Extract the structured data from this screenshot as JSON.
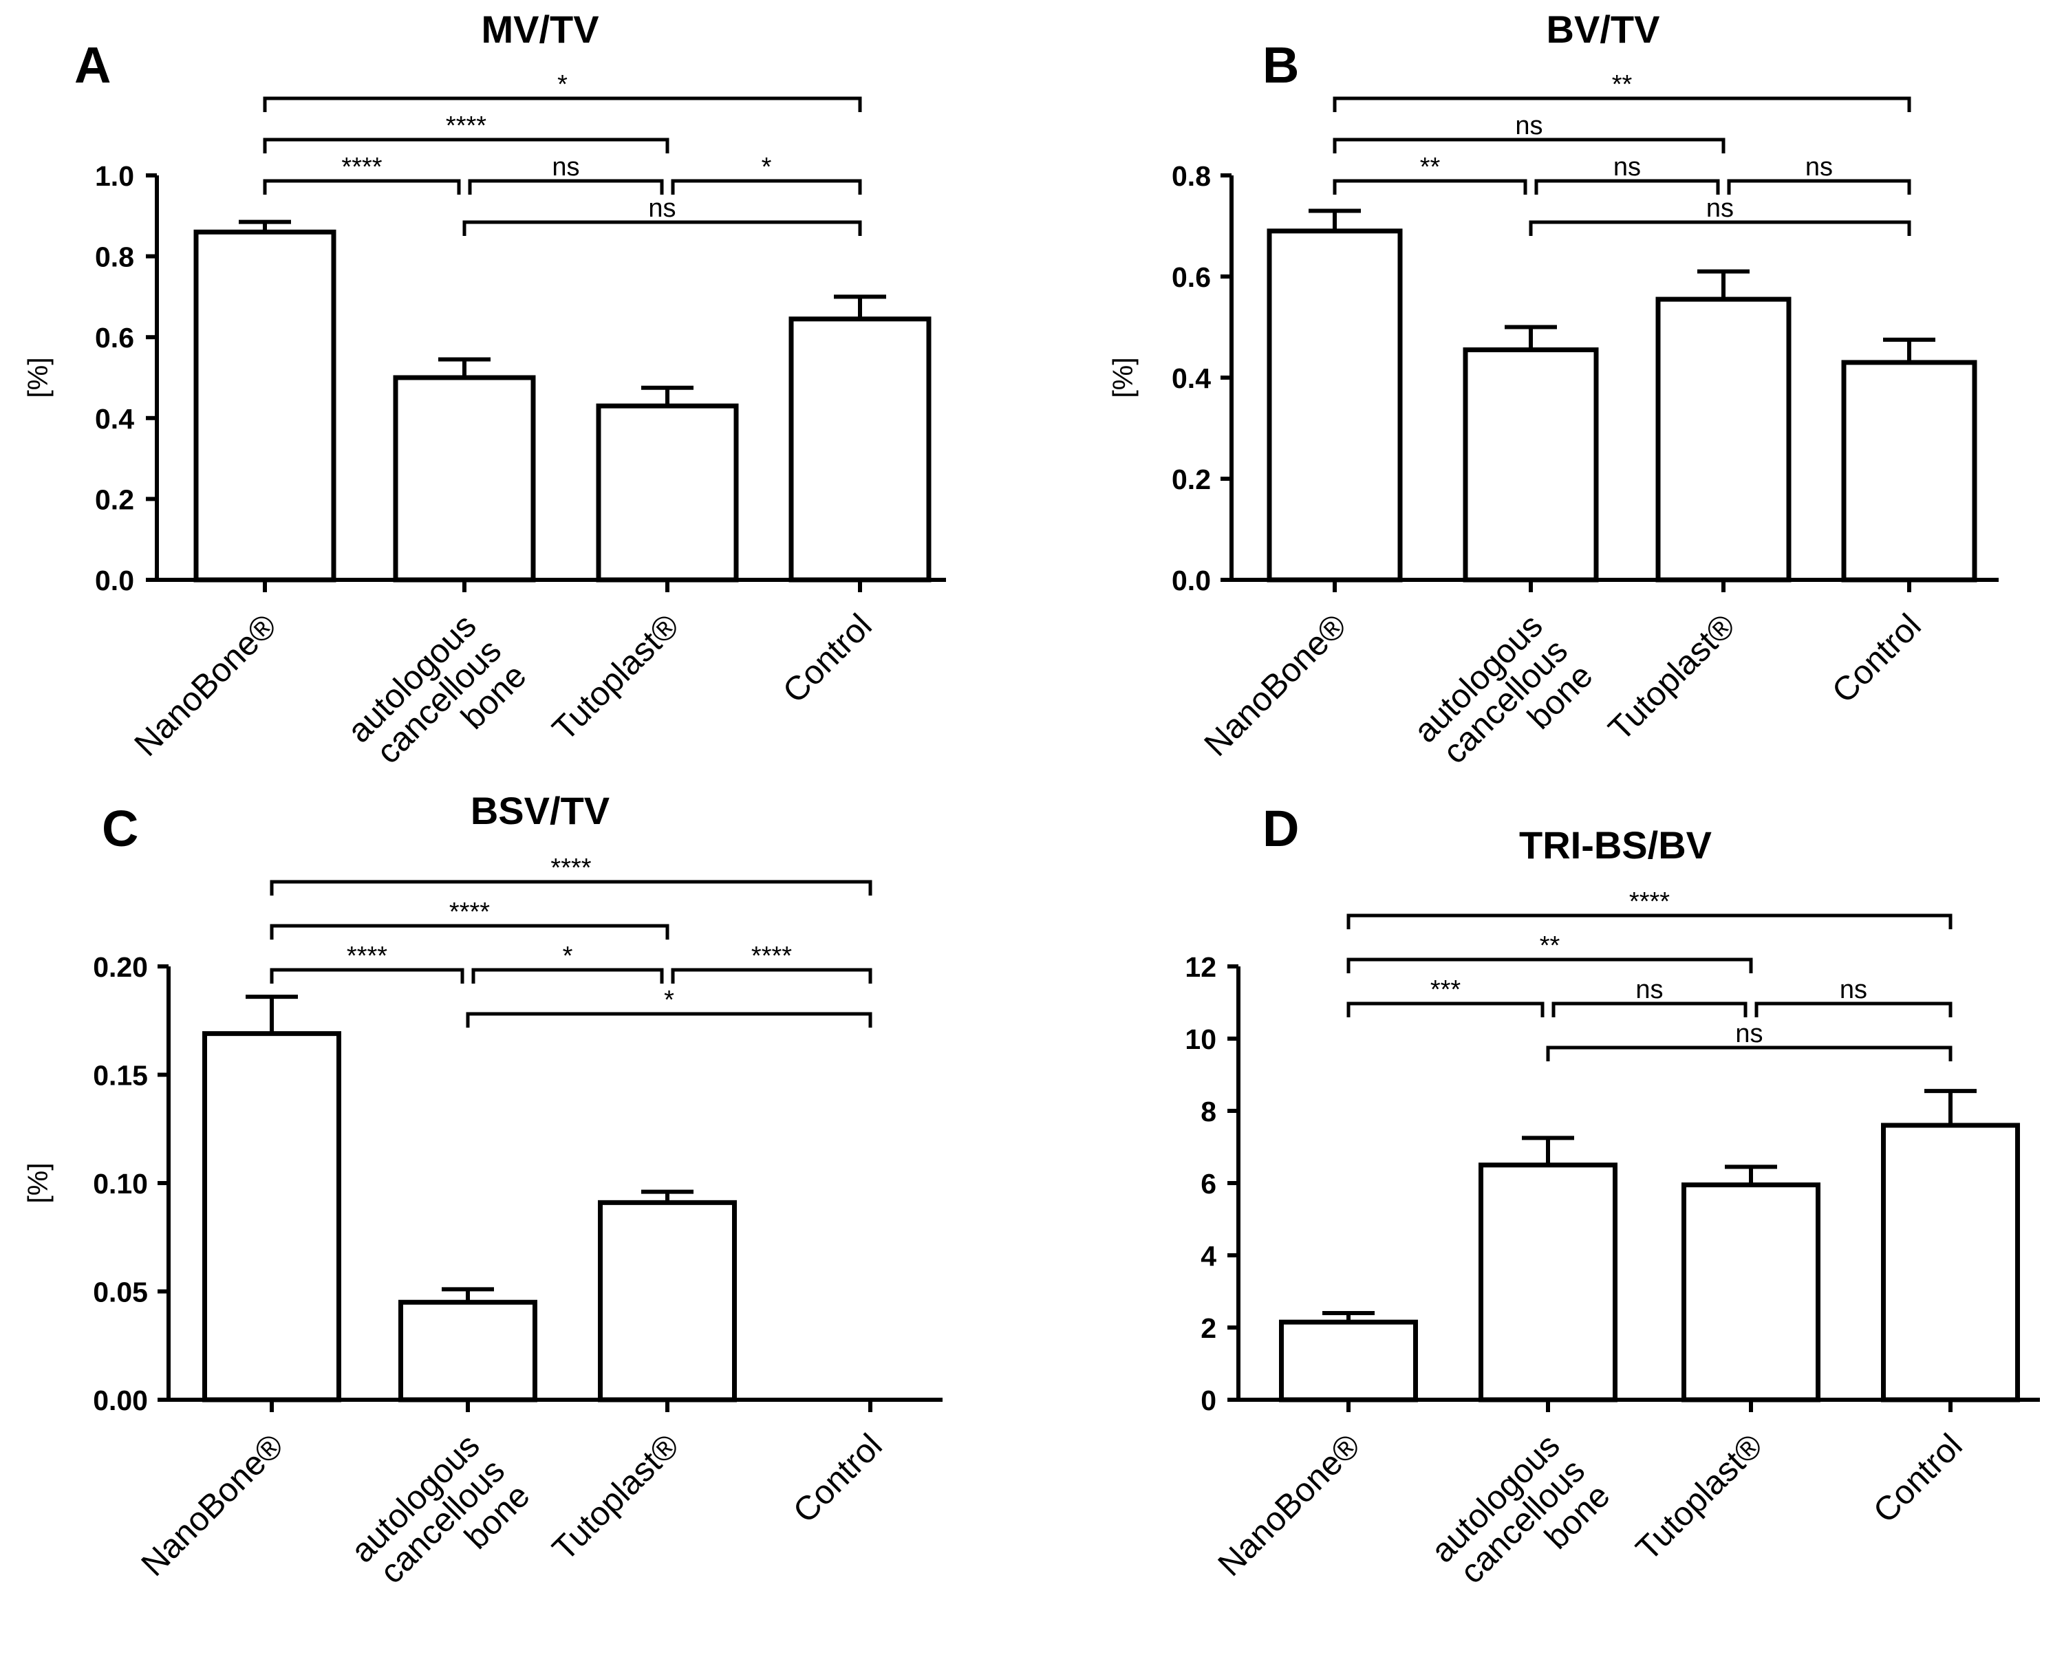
{
  "colors": {
    "bar_fill": "#ffffff",
    "stroke": "#000000",
    "highlight_text_shadow": "#d9602b"
  },
  "chart_data": [
    {
      "type": "bar",
      "panel": "A",
      "title": "MV/TV",
      "ylabel": "[%]",
      "ylim": [
        0,
        1.0
      ],
      "yticks": [
        "0.0",
        "0.2",
        "0.4",
        "0.6",
        "0.8",
        "1.0"
      ],
      "categories": [
        "NanoBone®",
        "autologous cancellous bone",
        "Tutoplast®",
        "Control"
      ],
      "category_lines": [
        [
          "NanoBone®"
        ],
        [
          "autologous",
          "cancellous",
          "bone"
        ],
        [
          "Tutoplast®"
        ],
        [
          "Control"
        ]
      ],
      "values": [
        0.86,
        0.5,
        0.43,
        0.645
      ],
      "errors": [
        0.025,
        0.045,
        0.045,
        0.055
      ],
      "significance": [
        {
          "from": 0,
          "to": 3,
          "label": "*"
        },
        {
          "from": 0,
          "to": 2,
          "label": "****"
        },
        {
          "from": 0,
          "to": 1,
          "label": "****"
        },
        {
          "from": 1,
          "to": 2,
          "label": "ns"
        },
        {
          "from": 2,
          "to": 3,
          "label": "*"
        },
        {
          "from": 1,
          "to": 3,
          "label": "ns"
        }
      ]
    },
    {
      "type": "bar",
      "panel": "B",
      "title": "BV/TV",
      "ylabel": "[%]",
      "ylim": [
        0,
        0.8
      ],
      "yticks": [
        "0.0",
        "0.2",
        "0.4",
        "0.6",
        "0.8"
      ],
      "categories": [
        "NanoBone®",
        "autologous cancellous bone",
        "Tutoplast®",
        "Control"
      ],
      "category_lines": [
        [
          "NanoBone®"
        ],
        [
          "autologous",
          "cancellous",
          "bone"
        ],
        [
          "Tutoplast®"
        ],
        [
          "Control"
        ]
      ],
      "values": [
        0.69,
        0.455,
        0.555,
        0.43
      ],
      "errors": [
        0.04,
        0.045,
        0.055,
        0.045
      ],
      "significance": [
        {
          "from": 0,
          "to": 3,
          "label": "**"
        },
        {
          "from": 0,
          "to": 2,
          "label": "ns"
        },
        {
          "from": 0,
          "to": 1,
          "label": "**"
        },
        {
          "from": 1,
          "to": 2,
          "label": "ns"
        },
        {
          "from": 2,
          "to": 3,
          "label": "ns"
        },
        {
          "from": 1,
          "to": 3,
          "label": "ns"
        }
      ]
    },
    {
      "type": "bar",
      "panel": "C",
      "title": "BSV/TV",
      "ylabel": "[%]",
      "ylim": [
        0,
        0.2
      ],
      "yticks": [
        "0.00",
        "0.05",
        "0.10",
        "0.15",
        "0.20"
      ],
      "categories": [
        "NanoBone®",
        "autologous cancellous bone",
        "Tutoplast®",
        "Control"
      ],
      "category_lines": [
        [
          "NanoBone®"
        ],
        [
          "autologous",
          "cancellous",
          "bone"
        ],
        [
          "Tutoplast®"
        ],
        [
          "Control"
        ]
      ],
      "values": [
        0.169,
        0.045,
        0.091,
        0.0
      ],
      "errors": [
        0.017,
        0.006,
        0.005,
        0.0
      ],
      "significance": [
        {
          "from": 0,
          "to": 3,
          "label": "****"
        },
        {
          "from": 0,
          "to": 2,
          "label": "****"
        },
        {
          "from": 0,
          "to": 1,
          "label": "****"
        },
        {
          "from": 1,
          "to": 2,
          "label": "*"
        },
        {
          "from": 2,
          "to": 3,
          "label": "****"
        },
        {
          "from": 1,
          "to": 3,
          "label": "*"
        }
      ]
    },
    {
      "type": "bar",
      "panel": "D",
      "title": "TRI-BS/BV",
      "ylabel": "",
      "ylim": [
        0,
        12
      ],
      "yticks": [
        "0",
        "2",
        "4",
        "6",
        "8",
        "10",
        "12"
      ],
      "categories": [
        "NanoBone®",
        "autologous cancellous bone",
        "Tutoplast®",
        "Control"
      ],
      "category_lines": [
        [
          "NanoBone®"
        ],
        [
          "autologous",
          "cancellous",
          "bone"
        ],
        [
          "Tutoplast®"
        ],
        [
          "Control"
        ]
      ],
      "values": [
        2.15,
        6.5,
        5.95,
        7.6
      ],
      "errors": [
        0.25,
        0.75,
        0.5,
        0.95
      ],
      "significance": [
        {
          "from": 0,
          "to": 3,
          "label": "****"
        },
        {
          "from": 0,
          "to": 2,
          "label": "**"
        },
        {
          "from": 0,
          "to": 1,
          "label": "***"
        },
        {
          "from": 1,
          "to": 2,
          "label": "ns"
        },
        {
          "from": 2,
          "to": 3,
          "label": "ns"
        },
        {
          "from": 1,
          "to": 3,
          "label": "ns"
        }
      ]
    }
  ]
}
